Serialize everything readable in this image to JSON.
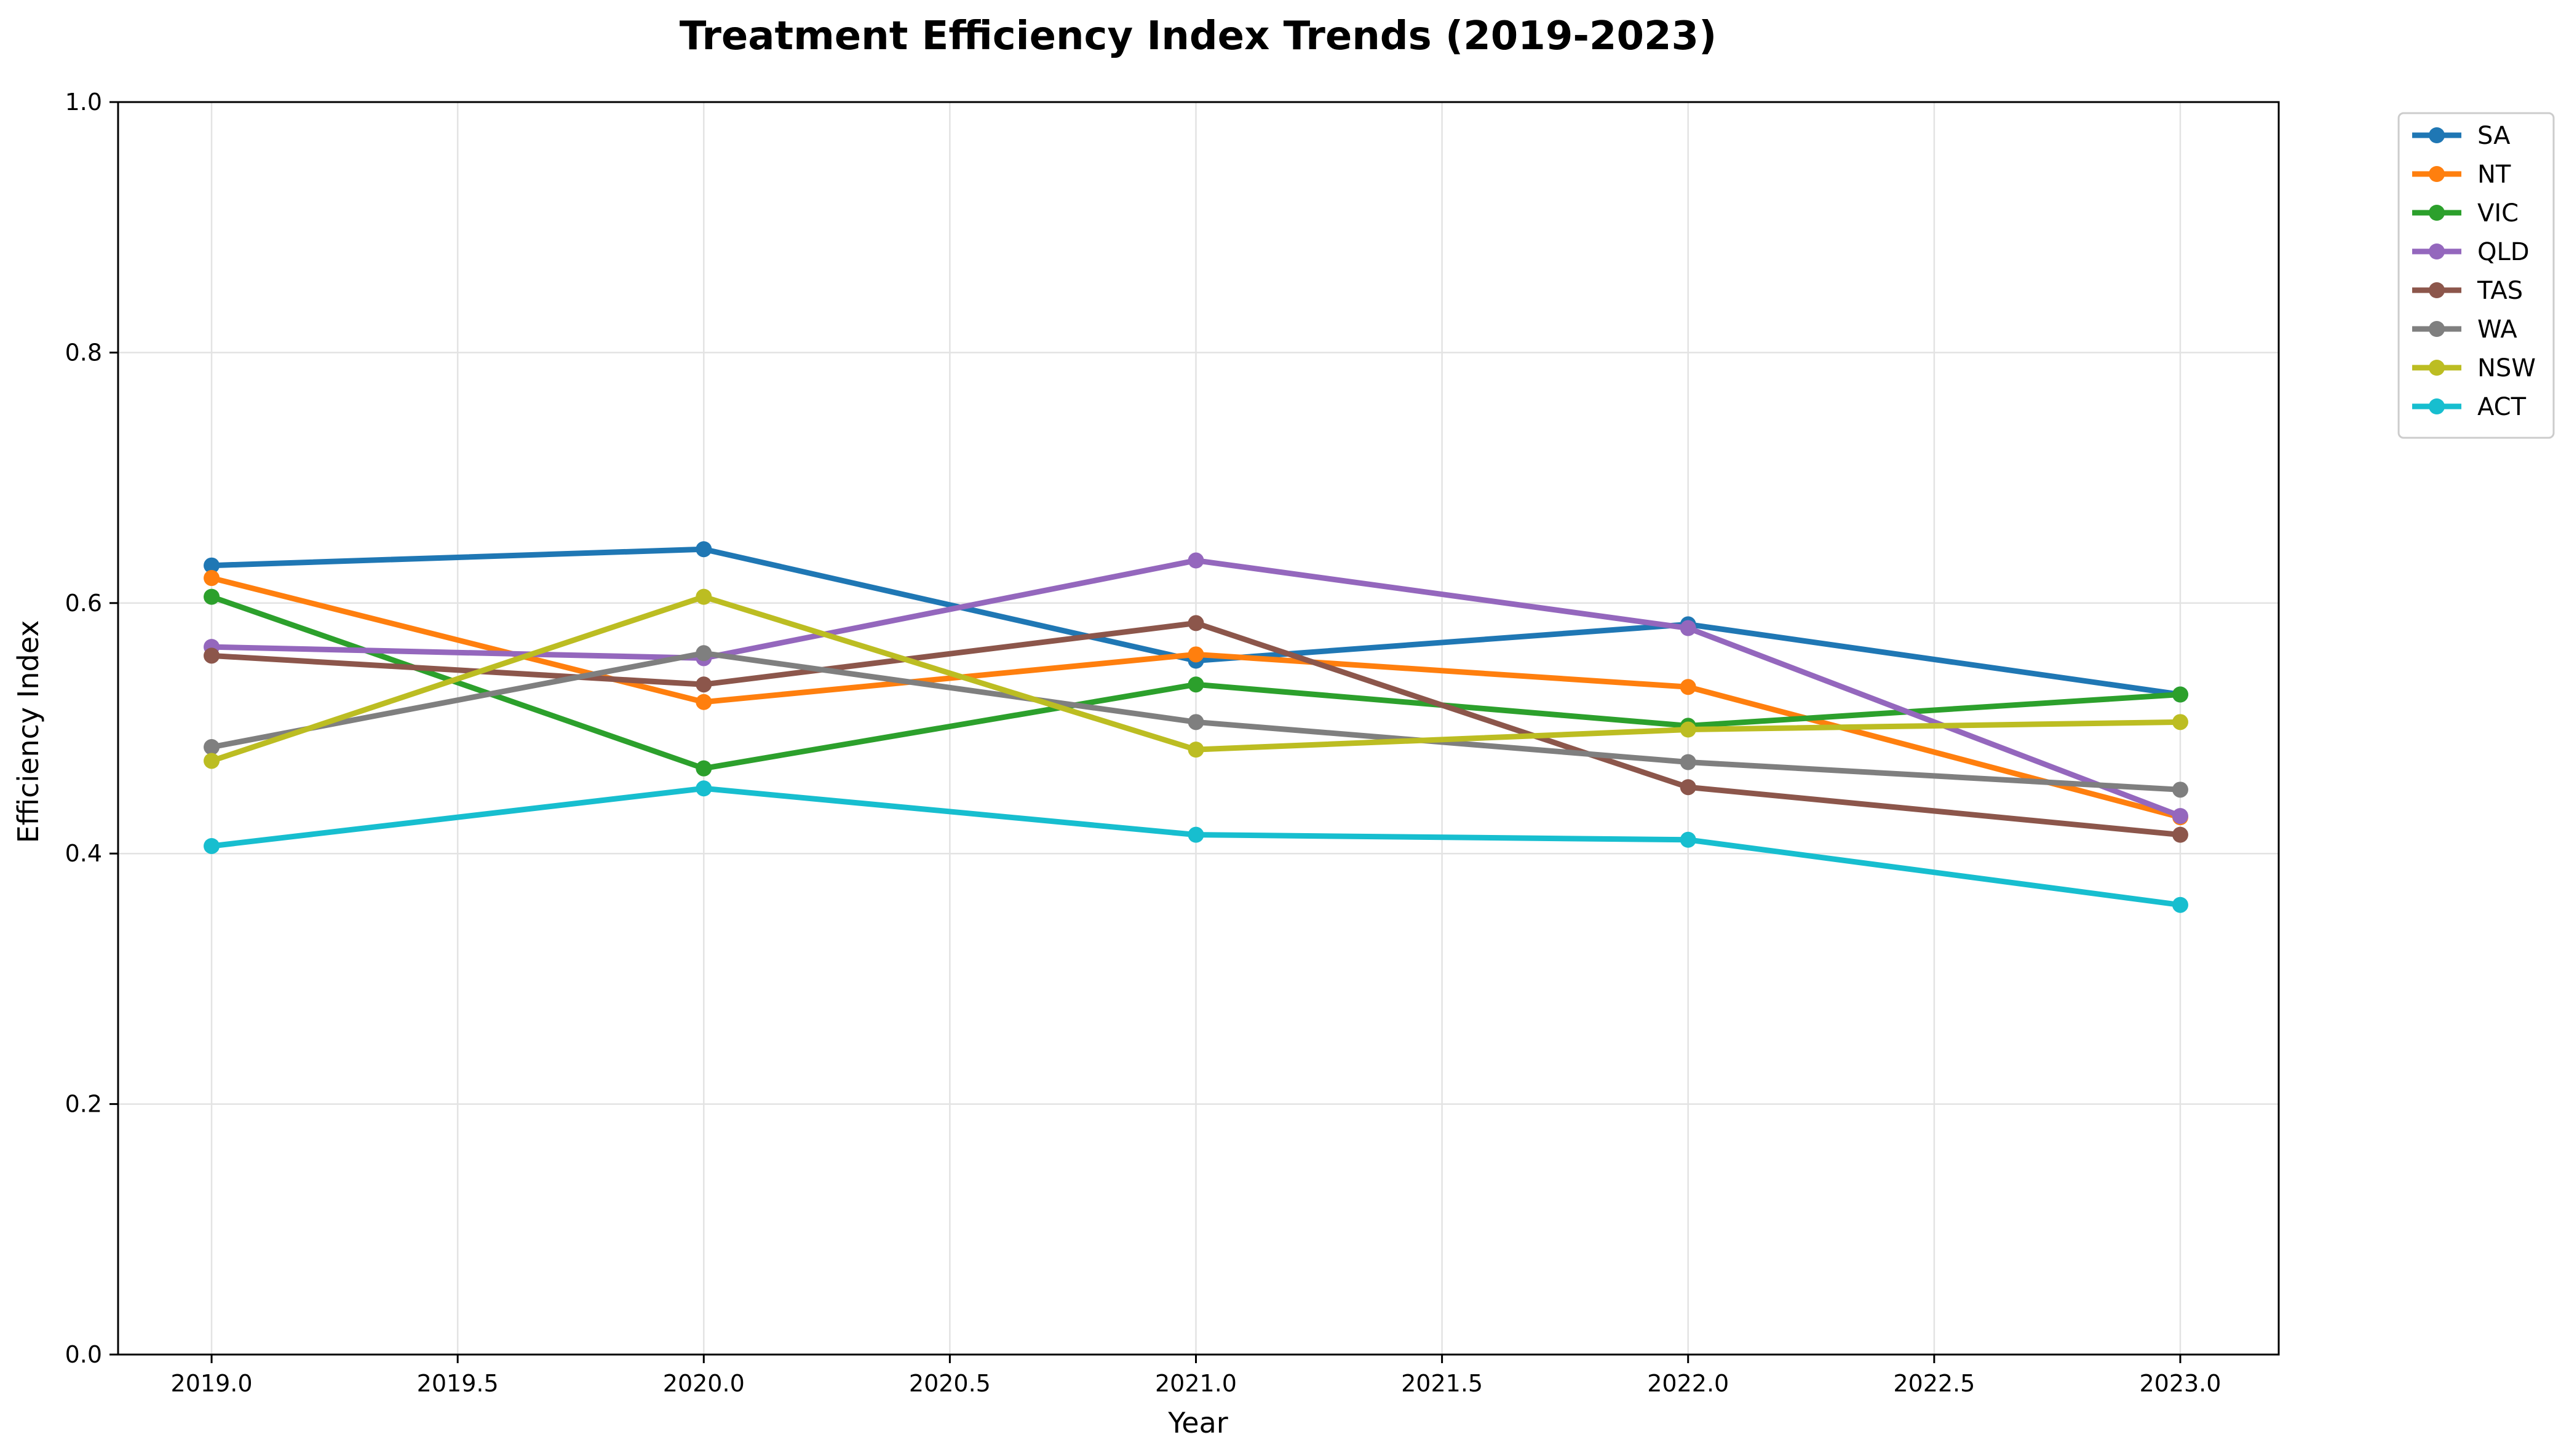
{
  "chart_data": {
    "type": "line",
    "title": "Treatment Efficiency Index Trends (2019-2023)",
    "xlabel": "Year",
    "ylabel": "Efficiency Index",
    "x": [
      2019,
      2020,
      2021,
      2022,
      2023
    ],
    "xlim": [
      2018.81,
      2023.2
    ],
    "ylim": [
      0.0,
      1.0
    ],
    "xticks": [
      2019.0,
      2019.5,
      2020.0,
      2020.5,
      2021.0,
      2021.5,
      2022.0,
      2022.5,
      2023.0
    ],
    "xtick_labels": [
      "2019.0",
      "2019.5",
      "2020.0",
      "2020.5",
      "2021.0",
      "2021.5",
      "2022.0",
      "2022.5",
      "2023.0"
    ],
    "yticks": [
      0.0,
      0.2,
      0.4,
      0.6,
      0.8,
      1.0
    ],
    "ytick_labels": [
      "0.0",
      "0.2",
      "0.4",
      "0.6",
      "0.8",
      "1.0"
    ],
    "grid": true,
    "legend_position": "outside-top-right",
    "series": [
      {
        "name": "SA",
        "color": "#1f77b4",
        "values": [
          0.63,
          0.643,
          0.554,
          0.583,
          0.527
        ]
      },
      {
        "name": "NT",
        "color": "#ff7f0e",
        "values": [
          0.62,
          0.521,
          0.559,
          0.533,
          0.429
        ]
      },
      {
        "name": "VIC",
        "color": "#2ca02c",
        "values": [
          0.605,
          0.468,
          0.535,
          0.502,
          0.527
        ]
      },
      {
        "name": "QLD",
        "color": "#9467bd",
        "values": [
          0.565,
          0.556,
          0.634,
          0.58,
          0.43
        ]
      },
      {
        "name": "TAS",
        "color": "#8c564b",
        "values": [
          0.558,
          0.535,
          0.584,
          0.453,
          0.415
        ]
      },
      {
        "name": "WA",
        "color": "#7f7f7f",
        "values": [
          0.485,
          0.56,
          0.505,
          0.473,
          0.451
        ]
      },
      {
        "name": "NSW",
        "color": "#bcbd22",
        "values": [
          0.474,
          0.605,
          0.483,
          0.499,
          0.505
        ]
      },
      {
        "name": "ACT",
        "color": "#17becf",
        "values": [
          0.406,
          0.452,
          0.415,
          0.411,
          0.359
        ]
      }
    ]
  }
}
